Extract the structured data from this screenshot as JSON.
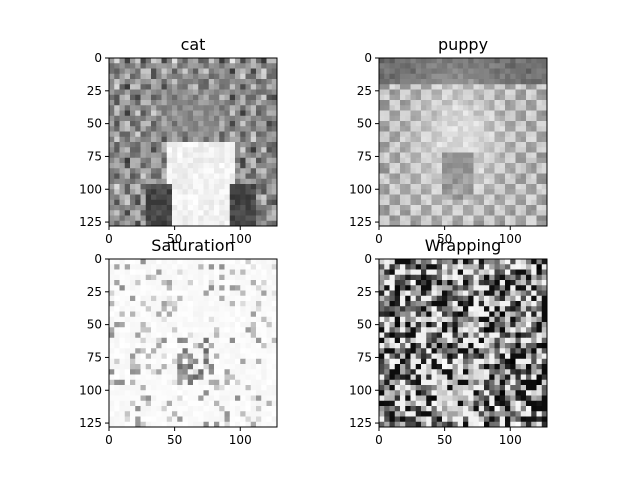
{
  "figure": {
    "background": "#ffffff"
  },
  "chart_data": [
    {
      "type": "heatmap",
      "title": "cat",
      "colormap": "gray",
      "image_size": [
        128,
        128
      ],
      "xlim": [
        0,
        128
      ],
      "ylim": [
        128,
        0
      ],
      "xticks": [
        0,
        50,
        100
      ],
      "yticks": [
        0,
        25,
        50,
        75,
        100,
        125
      ],
      "xlabel": "",
      "ylabel": "",
      "grid": false,
      "content": "grayscale photo of a cat wearing a white collar, patterned background"
    },
    {
      "type": "heatmap",
      "title": "puppy",
      "colormap": "gray",
      "image_size": [
        128,
        128
      ],
      "xlim": [
        0,
        128
      ],
      "ylim": [
        128,
        0
      ],
      "xticks": [
        0,
        50,
        100
      ],
      "yticks": [
        0,
        25,
        50,
        75,
        100,
        125
      ],
      "xlabel": "",
      "ylabel": "",
      "grid": false,
      "content": "grayscale photo of a corgi puppy with tongue out on a checkered blanket"
    },
    {
      "type": "heatmap",
      "title": "Saturation",
      "colormap": "gray",
      "image_size": [
        128,
        128
      ],
      "xlim": [
        0,
        128
      ],
      "ylim": [
        128,
        0
      ],
      "xticks": [
        0,
        50,
        100
      ],
      "yticks": [
        0,
        25,
        50,
        75,
        100,
        125
      ],
      "xlabel": "",
      "ylabel": "",
      "grid": false,
      "content": "mostly white saturated blend of both images with faint grey details"
    },
    {
      "type": "heatmap",
      "title": "Wrapping",
      "colormap": "gray",
      "image_size": [
        128,
        128
      ],
      "xlim": [
        0,
        128
      ],
      "ylim": [
        128,
        0
      ],
      "xticks": [
        0,
        50,
        100
      ],
      "yticks": [
        0,
        25,
        50,
        75,
        100,
        125
      ],
      "xlabel": "",
      "ylabel": "",
      "grid": false,
      "content": "noisy high-contrast wrapped blend of both images"
    }
  ]
}
